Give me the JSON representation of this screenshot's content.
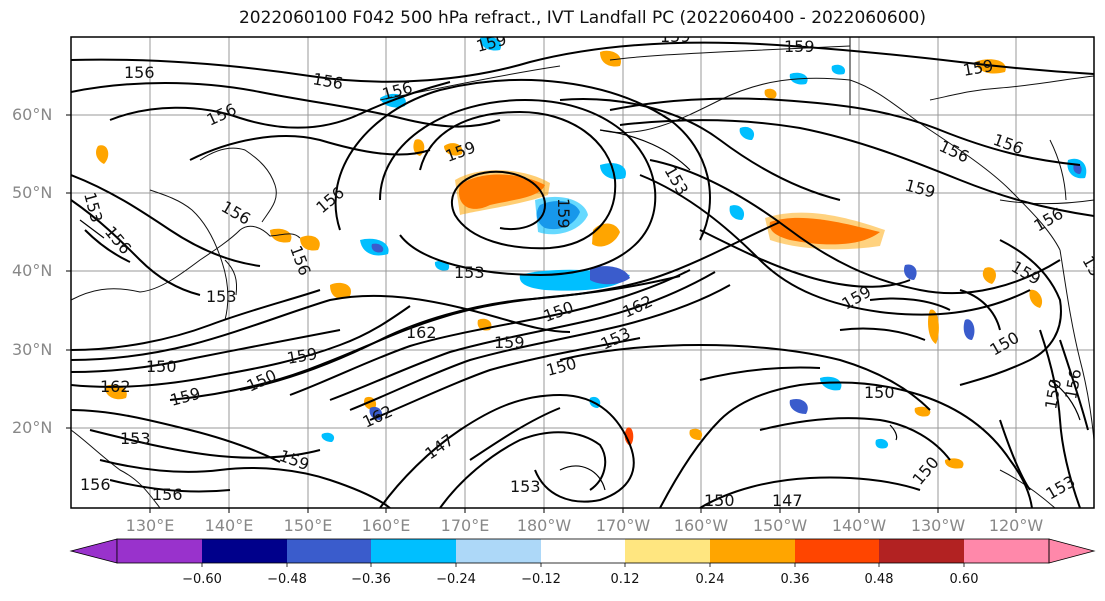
{
  "title": "2022060100 F042 500 hPa refract., IVT Landfall PC (2022060400 - 2022060600)",
  "latitude_labels": [
    "60°N",
    "50°N",
    "40°N",
    "30°N",
    "20°N"
  ],
  "longitude_labels": [
    "130°E",
    "140°E",
    "150°E",
    "160°E",
    "170°E",
    "180°W",
    "170°W",
    "160°W",
    "150°W",
    "140°W",
    "130°W",
    "120°W"
  ],
  "colorbar": {
    "tick_labels": [
      "−0.60",
      "−0.48",
      "−0.36",
      "−0.24",
      "−0.12",
      "0.12",
      "0.24",
      "0.36",
      "0.48",
      "0.60"
    ],
    "colors": [
      "#9932cc",
      "#00008b",
      "#3a5ccc",
      "#00bfff",
      "#add8f8",
      "#ffffff",
      "#ffe680",
      "#ffa500",
      "#ff4500",
      "#b22222",
      "#ff88aa"
    ]
  },
  "contour_labels": [
    "156",
    "159",
    "156",
    "156",
    "159",
    "156",
    "153",
    "156",
    "156",
    "159",
    "156",
    "153",
    "159",
    "153",
    "162",
    "150",
    "159",
    "162",
    "153",
    "150",
    "159",
    "162",
    "159",
    "150",
    "162",
    "159",
    "150",
    "153",
    "150",
    "147",
    "159",
    "153",
    "156",
    "150",
    "147",
    "159",
    "150",
    "156",
    "159",
    "150",
    "159",
    "156",
    "153",
    "150",
    "156",
    "156",
    "153",
    "159",
    "156",
    "156",
    "159"
  ],
  "anomaly_color_names": [
    "negative-blue",
    "positive-orange",
    "positive-red"
  ]
}
